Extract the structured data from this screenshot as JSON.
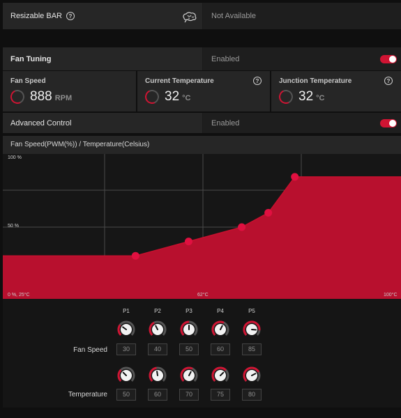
{
  "resizable_bar": {
    "label": "Resizable BAR",
    "value": "Not Available",
    "help_icon": "question-circle-icon",
    "status_icon": "brain-icon"
  },
  "fan_tuning": {
    "label": "Fan Tuning",
    "value": "Enabled",
    "toggle_on": true
  },
  "gauges": [
    {
      "title": "Fan Speed",
      "value": "888",
      "unit": "RPM",
      "help": false
    },
    {
      "title": "Current Temperature",
      "value": "32",
      "unit": "°C",
      "help": true
    },
    {
      "title": "Junction Temperature",
      "value": "32",
      "unit": "°C",
      "help": true
    }
  ],
  "advanced_control": {
    "label": "Advanced Control",
    "value": "Enabled",
    "toggle_on": true
  },
  "chart_title": "Fan Speed(PWM(%)) / Temperature(Celsius)",
  "chart_data": {
    "type": "area",
    "title": "Fan Speed(PWM(%)) / Temperature(Celsius)",
    "x_axis_labels": {
      "left": "0 %, 25°C",
      "mid": "62°C",
      "right": "100°C"
    },
    "y_axis_labels": {
      "top": "100 %",
      "mid": "50 %"
    },
    "xlim": [
      25,
      100
    ],
    "ylim": [
      0,
      100
    ],
    "points": [
      {
        "x": 25,
        "y": 30
      },
      {
        "x": 50,
        "y": 30
      },
      {
        "x": 60,
        "y": 40
      },
      {
        "x": 70,
        "y": 50
      },
      {
        "x": 75,
        "y": 60
      },
      {
        "x": 80,
        "y": 85
      },
      {
        "x": 100,
        "y": 85
      }
    ],
    "markers": [
      {
        "x": 50,
        "y": 30
      },
      {
        "x": 60,
        "y": 40
      },
      {
        "x": 70,
        "y": 50
      },
      {
        "x": 75,
        "y": 60
      },
      {
        "x": 80,
        "y": 85
      }
    ],
    "grid": true,
    "fill_color": "#b8102e",
    "marker_color": "#e01040"
  },
  "fan_points": {
    "labels": [
      "P1",
      "P2",
      "P3",
      "P4",
      "P5"
    ],
    "fan_speed_label": "Fan Speed",
    "temperature_label": "Temperature",
    "fan_speed": [
      "30",
      "40",
      "50",
      "60",
      "85"
    ],
    "temperature": [
      "50",
      "60",
      "70",
      "75",
      "80"
    ],
    "fan_speed_levels": [
      30,
      40,
      50,
      60,
      85
    ],
    "temperature_levels": [
      50,
      60,
      70,
      75,
      80
    ]
  },
  "colors": {
    "accent": "#d01433",
    "panel": "#262626",
    "background": "#0f0f0f"
  }
}
